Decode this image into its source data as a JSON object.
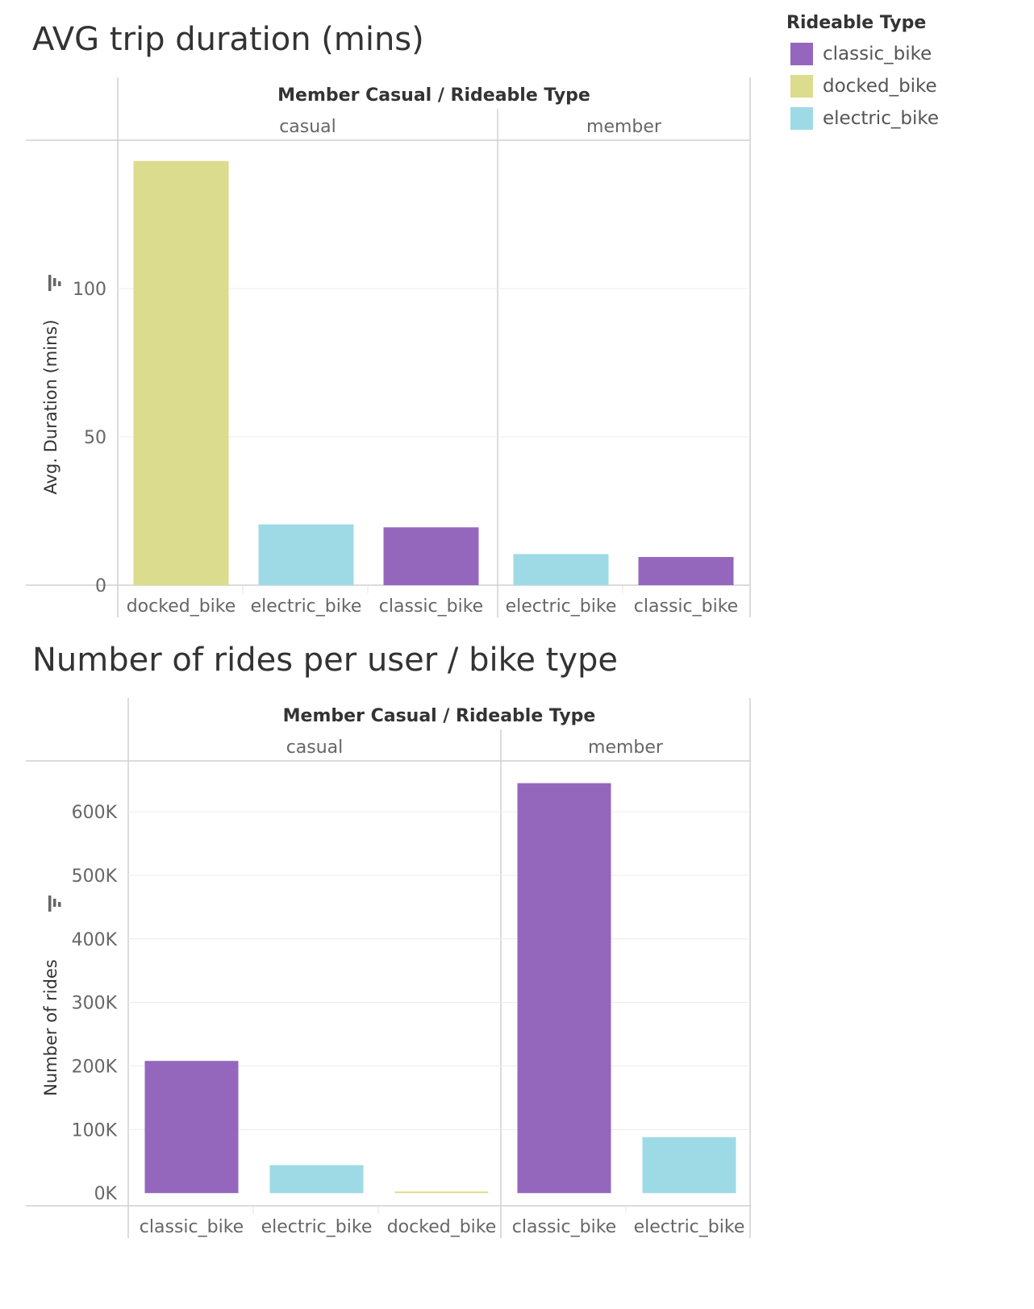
{
  "legend": {
    "title": "Rideable Type",
    "items": [
      {
        "label": "classic_bike",
        "color": "#9467bd"
      },
      {
        "label": "docked_bike",
        "color": "#dbdc8d"
      },
      {
        "label": "electric_bike",
        "color": "#9edae5"
      }
    ]
  },
  "chart_data": [
    {
      "type": "bar",
      "title": "AVG trip duration (mins)",
      "header": "Member Casual  /  Rideable Type",
      "ylabel": "Avg. Duration (mins)",
      "ylim": [
        0,
        150
      ],
      "yticks": [
        0,
        50,
        100
      ],
      "ytick_labels": [
        "0",
        "50",
        "100"
      ],
      "grid": true,
      "groups": [
        {
          "name": "casual",
          "bars": [
            {
              "category": "docked_bike",
              "value": 143
            },
            {
              "category": "electric_bike",
              "value": 20.5
            },
            {
              "category": "classic_bike",
              "value": 19.5
            }
          ]
        },
        {
          "name": "member",
          "bars": [
            {
              "category": "electric_bike",
              "value": 10.5
            },
            {
              "category": "classic_bike",
              "value": 9.5
            }
          ]
        }
      ]
    },
    {
      "type": "bar",
      "title": "Number of rides per user / bike type",
      "header": "Member Casual  /  Rideable Type",
      "ylabel": "Number of rides",
      "ylim": [
        -20000,
        680000
      ],
      "yticks": [
        0,
        100000,
        200000,
        300000,
        400000,
        500000,
        600000
      ],
      "ytick_labels": [
        "0K",
        "100K",
        "200K",
        "300K",
        "400K",
        "500K",
        "600K"
      ],
      "grid": true,
      "groups": [
        {
          "name": "casual",
          "bars": [
            {
              "category": "classic_bike",
              "value": 208000
            },
            {
              "category": "electric_bike",
              "value": 44000
            },
            {
              "category": "docked_bike",
              "value": 2500
            }
          ]
        },
        {
          "name": "member",
          "bars": [
            {
              "category": "classic_bike",
              "value": 645000
            },
            {
              "category": "electric_bike",
              "value": 88000
            }
          ]
        }
      ]
    }
  ]
}
